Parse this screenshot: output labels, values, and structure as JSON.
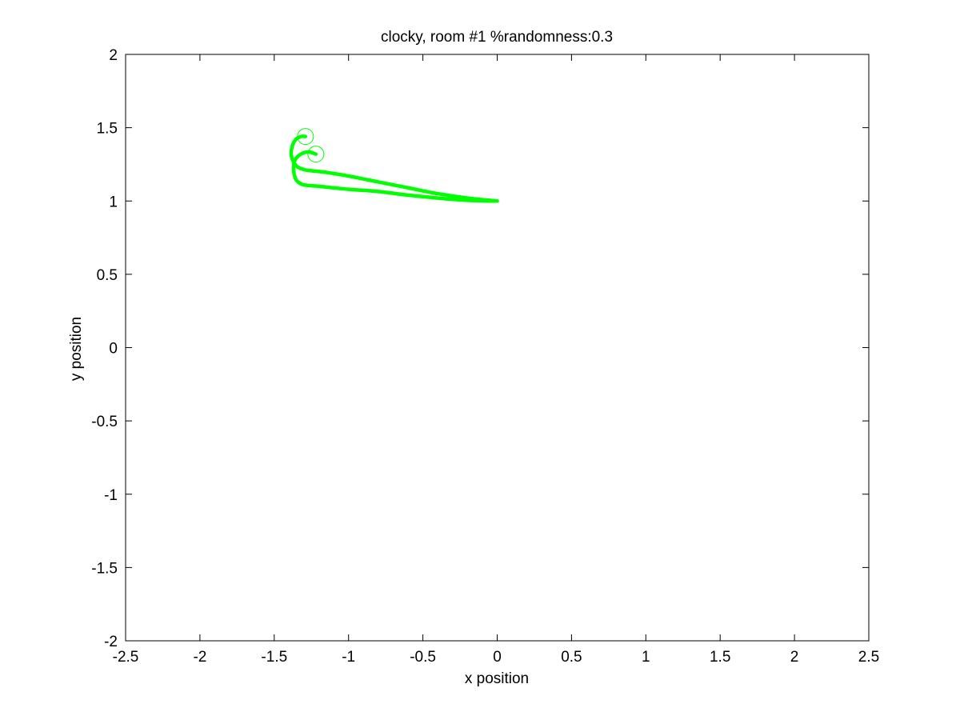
{
  "chart_data": {
    "type": "line",
    "title": "clocky, room #1 %randomness:0.3",
    "xlabel": "x position",
    "ylabel": "y position",
    "xlim": [
      -2.5,
      2.5
    ],
    "ylim": [
      -2,
      2
    ],
    "xticks": [
      -2.5,
      -2,
      -1.5,
      -1,
      -0.5,
      0,
      0.5,
      1,
      1.5,
      2,
      2.5
    ],
    "yticks": [
      -2,
      -1.5,
      -1,
      -0.5,
      0,
      0.5,
      1,
      1.5,
      2
    ],
    "xtick_labels": [
      "-2.5",
      "-2",
      "-1.5",
      "-1",
      "-0.5",
      "0",
      "0.5",
      "1",
      "1.5",
      "2",
      "2.5"
    ],
    "ytick_labels": [
      "-2",
      "-1.5",
      "-1",
      "-0.5",
      "0",
      "0.5",
      "1",
      "1.5",
      "2"
    ],
    "grid": false,
    "series_color": "#00ff00",
    "series": [
      {
        "points": [
          [
            0.0,
            1.0
          ],
          [
            -0.2,
            1.005
          ],
          [
            -0.4,
            1.02
          ],
          [
            -0.6,
            1.04
          ],
          [
            -0.8,
            1.065
          ],
          [
            -1.0,
            1.08
          ],
          [
            -1.2,
            1.1
          ],
          [
            -1.3,
            1.11
          ],
          [
            -1.34,
            1.13
          ],
          [
            -1.36,
            1.16
          ],
          [
            -1.37,
            1.22
          ],
          [
            -1.36,
            1.28
          ],
          [
            -1.32,
            1.32
          ],
          [
            -1.27,
            1.335
          ],
          [
            -1.22,
            1.32
          ]
        ],
        "end_marker": [
          -1.22,
          1.32
        ]
      },
      {
        "points": [
          [
            0.0,
            1.0
          ],
          [
            -0.2,
            1.02
          ],
          [
            -0.4,
            1.05
          ],
          [
            -0.6,
            1.09
          ],
          [
            -0.8,
            1.13
          ],
          [
            -1.0,
            1.17
          ],
          [
            -1.15,
            1.195
          ],
          [
            -1.28,
            1.21
          ],
          [
            -1.33,
            1.225
          ],
          [
            -1.36,
            1.25
          ],
          [
            -1.385,
            1.31
          ],
          [
            -1.38,
            1.37
          ],
          [
            -1.355,
            1.42
          ],
          [
            -1.32,
            1.44
          ],
          [
            -1.29,
            1.44
          ]
        ],
        "end_marker": [
          -1.29,
          1.44
        ]
      }
    ]
  }
}
